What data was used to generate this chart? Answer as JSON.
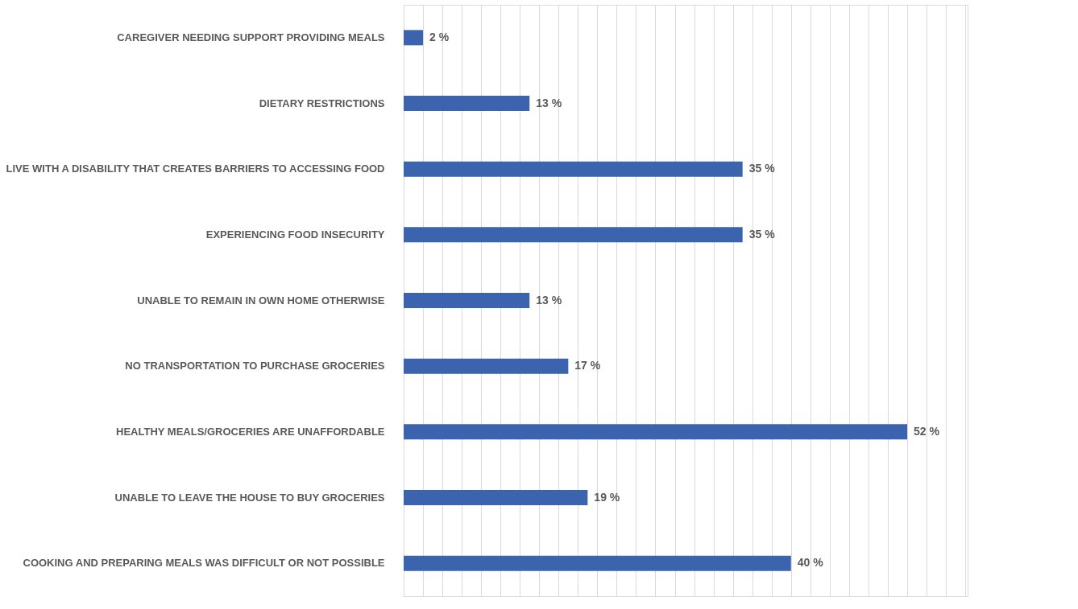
{
  "chart_data": {
    "type": "bar",
    "orientation": "horizontal",
    "categories": [
      "CAREGIVER NEEDING SUPPORT PROVIDING MEALS",
      "DIETARY RESTRICTIONS",
      "LIVE WITH A DISABILITY THAT CREATES BARRIERS TO ACCESSING FOOD",
      "EXPERIENCING FOOD INSECURITY",
      "UNABLE TO REMAIN IN OWN HOME OTHERWISE",
      "NO TRANSPORTATION TO PURCHASE GROCERIES",
      "HEALTHY MEALS/GROCERIES ARE UNAFFORDABLE",
      "UNABLE TO LEAVE THE HOUSE TO BUY GROCERIES",
      "COOKING AND PREPARING MEALS WAS DIFFICULT OR NOT POSSIBLE"
    ],
    "values": [
      2,
      13,
      35,
      35,
      13,
      17,
      52,
      19,
      40
    ],
    "value_labels": [
      "2 %",
      "13 %",
      "35 %",
      "35 %",
      "13 %",
      "17 %",
      "52 %",
      "19 %",
      "40 %"
    ],
    "color": "#3c64ae",
    "grid": "x",
    "tick_labels": "y"
  }
}
